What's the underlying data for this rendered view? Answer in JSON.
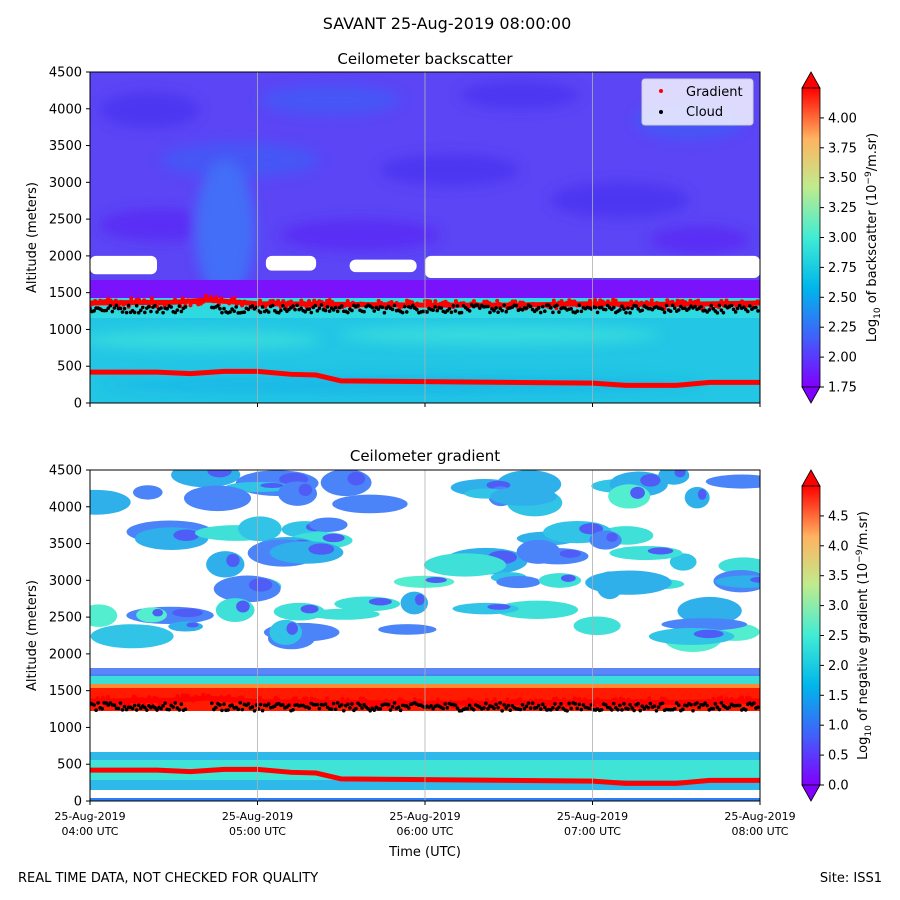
{
  "suptitle": "SAVANT 25-Aug-2019 08:00:00",
  "footer": {
    "left": "REAL TIME DATA, NOT CHECKED FOR QUALITY",
    "right": "Site: ISS1"
  },
  "colors": {
    "gradient_marker": "#ff0000",
    "cloud_marker": "#000000",
    "grid": "#b0b0b0"
  },
  "chart_data": [
    {
      "type": "heatmap",
      "title": "Ceilometer backscatter",
      "ylabel": "Altitude (meters)",
      "xlabel": "",
      "ylim": [
        0,
        4500
      ],
      "xlim_hours": [
        4,
        8
      ],
      "yticks": [
        0,
        500,
        1000,
        1500,
        2000,
        2500,
        3000,
        3500,
        4000,
        4500
      ],
      "ytick_labels": [
        "0",
        "500",
        "1000",
        "1500",
        "2000",
        "2500",
        "3000",
        "3500",
        "4000",
        "4500"
      ],
      "x_gridlines_hours": [
        5,
        6,
        7
      ],
      "legend": {
        "position": "top-right",
        "items": [
          {
            "label": "Gradient",
            "color": "#ff0000"
          },
          {
            "label": "Cloud",
            "color": "#000000"
          }
        ]
      },
      "colorbar": {
        "label": "Log10 of backscatter (10^-9/m.sr)",
        "label_parts": {
          "pre": "Log",
          "sub": "10",
          "mid": " of backscatter (10",
          "sup": "−9",
          "post": "/m.sr)"
        },
        "range": [
          1.75,
          4.25
        ],
        "ticks": [
          1.75,
          2.0,
          2.25,
          2.5,
          2.75,
          3.0,
          3.25,
          3.5,
          3.75,
          4.0
        ],
        "tick_labels": [
          "1.75",
          "2.00",
          "2.25",
          "2.50",
          "2.75",
          "3.00",
          "3.25",
          "3.50",
          "3.75",
          "4.00"
        ]
      },
      "layers_altitude_m": [
        {
          "name": "surface layer",
          "from": 0,
          "to": 1050,
          "value": 2.35
        },
        {
          "name": "layer top",
          "from": 1050,
          "to": 1300,
          "value": 2.65
        },
        {
          "name": "free troposphere",
          "from": 1500,
          "to": 4500,
          "value": 1.95
        }
      ],
      "blank_regions": [
        {
          "t_start": 4.0,
          "t_end": 4.4,
          "alt_low": 1750,
          "alt_high": 2000
        },
        {
          "t_start": 5.05,
          "t_end": 5.35,
          "alt_low": 1800,
          "alt_high": 2000
        },
        {
          "t_start": 5.55,
          "t_end": 5.95,
          "alt_low": 1780,
          "alt_high": 1950
        },
        {
          "t_start": 6.0,
          "t_end": 8.0,
          "alt_low": 1700,
          "alt_high": 2000
        }
      ],
      "series": [
        {
          "name": "Gradient",
          "hours": [
            4.0,
            4.4,
            4.6,
            4.8,
            5.0,
            5.2,
            5.35,
            5.5,
            6.0,
            6.5,
            7.0,
            7.2,
            7.5,
            7.7,
            8.0
          ],
          "altitude": [
            420,
            420,
            400,
            430,
            430,
            390,
            380,
            300,
            290,
            280,
            270,
            240,
            240,
            280,
            280
          ]
        },
        {
          "name": "Gradient (upper)",
          "hours": [
            4.0,
            4.5,
            4.7,
            5.0,
            5.5,
            6.0,
            6.5,
            7.0,
            7.5,
            8.0
          ],
          "altitude": [
            1360,
            1370,
            1400,
            1350,
            1340,
            1330,
            1330,
            1350,
            1340,
            1360
          ]
        },
        {
          "name": "Cloud",
          "hours_range": [
            4.0,
            8.0
          ],
          "gap_hours": [
            4.58,
            4.72
          ],
          "altitude_approx": 1280
        }
      ]
    },
    {
      "type": "heatmap",
      "title": "Ceilometer gradient",
      "ylabel": "Altitude (meters)",
      "xlabel": "Time (UTC)",
      "ylim": [
        0,
        4500
      ],
      "xlim_hours": [
        4,
        8
      ],
      "yticks": [
        0,
        500,
        1000,
        1500,
        2000,
        2500,
        3000,
        3500,
        4000,
        4500
      ],
      "ytick_labels": [
        "0",
        "500",
        "1000",
        "1500",
        "2000",
        "2500",
        "3000",
        "3500",
        "4000",
        "4500"
      ],
      "xticks_hours": [
        4,
        5,
        6,
        7,
        8
      ],
      "xtick_labels": [
        {
          "date": "25-Aug-2019",
          "time": "04:00 UTC"
        },
        {
          "date": "25-Aug-2019",
          "time": "05:00 UTC"
        },
        {
          "date": "25-Aug-2019",
          "time": "06:00 UTC"
        },
        {
          "date": "25-Aug-2019",
          "time": "07:00 UTC"
        },
        {
          "date": "25-Aug-2019",
          "time": "08:00 UTC"
        }
      ],
      "x_gridlines_hours": [
        5,
        6,
        7
      ],
      "colorbar": {
        "label": "Log10 of negative gradient (10^-9/m.sr)",
        "label_parts": {
          "pre": "Log",
          "sub": "10",
          "mid": " of negative gradient (10",
          "sup": "−9",
          "post": "/m.sr)"
        },
        "range": [
          0.0,
          5.0
        ],
        "ticks": [
          0.0,
          0.5,
          1.0,
          1.5,
          2.0,
          2.5,
          3.0,
          3.5,
          4.0,
          4.5
        ],
        "tick_labels": [
          "0.0",
          "0.5",
          "1.0",
          "1.5",
          "2.0",
          "2.5",
          "3.0",
          "3.5",
          "4.0",
          "4.5"
        ]
      },
      "gradient_bands": [
        {
          "from": 1220,
          "to": 1580,
          "value": 4.8
        },
        {
          "from": 1580,
          "to": 1800,
          "value": 1.8
        },
        {
          "from": 150,
          "to": 600,
          "value": 1.6
        }
      ],
      "series": [
        {
          "name": "Gradient",
          "hours": [
            4.0,
            4.4,
            4.6,
            4.8,
            5.0,
            5.2,
            5.35,
            5.5,
            6.0,
            6.5,
            7.0,
            7.2,
            7.5,
            7.7,
            8.0
          ],
          "altitude": [
            420,
            420,
            400,
            430,
            430,
            390,
            380,
            300,
            290,
            280,
            270,
            240,
            240,
            280,
            280
          ]
        },
        {
          "name": "Gradient (upper)",
          "hours": [
            4.0,
            4.5,
            4.7,
            5.0,
            5.5,
            6.0,
            6.5,
            7.0,
            7.5,
            8.0
          ],
          "altitude": [
            1360,
            1370,
            1400,
            1350,
            1340,
            1330,
            1330,
            1350,
            1340,
            1360
          ]
        },
        {
          "name": "Cloud",
          "hours_range": [
            4.0,
            8.0
          ],
          "gap_hours": [
            4.58,
            4.72
          ],
          "altitude_approx": 1280
        }
      ]
    }
  ]
}
